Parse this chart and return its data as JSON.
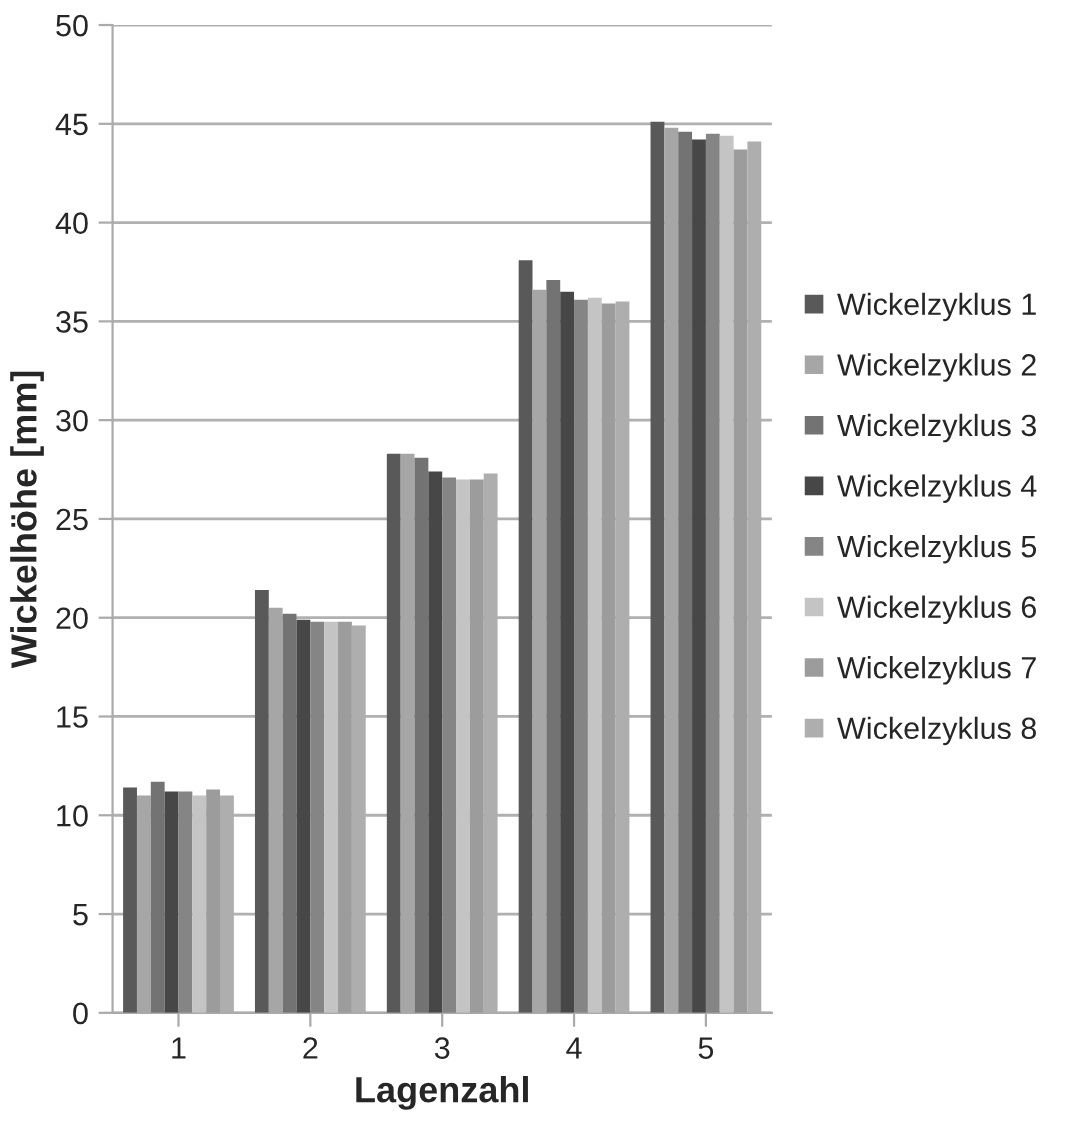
{
  "chart_data": {
    "type": "bar",
    "xlabel": "Lagenzahl",
    "ylabel": "Wickelhöhe [mm]",
    "categories": [
      "1",
      "2",
      "3",
      "4",
      "5"
    ],
    "series": [
      {
        "name": "Wickelzyklus 1",
        "color": "#595959",
        "values": [
          11.4,
          21.4,
          28.3,
          38.1,
          45.1
        ]
      },
      {
        "name": "Wickelzyklus 2",
        "color": "#a6a6a6",
        "values": [
          11.0,
          20.5,
          28.3,
          36.6,
          44.8
        ]
      },
      {
        "name": "Wickelzyklus 3",
        "color": "#737373",
        "values": [
          11.7,
          20.2,
          28.1,
          37.1,
          44.6
        ]
      },
      {
        "name": "Wickelzyklus 4",
        "color": "#474747",
        "values": [
          11.2,
          19.9,
          27.4,
          36.5,
          44.2
        ]
      },
      {
        "name": "Wickelzyklus 5",
        "color": "#858585",
        "values": [
          11.2,
          19.8,
          27.1,
          36.1,
          44.5
        ]
      },
      {
        "name": "Wickelzyklus 6",
        "color": "#c4c4c4",
        "values": [
          11.0,
          19.8,
          27.0,
          36.2,
          44.4
        ]
      },
      {
        "name": "Wickelzyklus 7",
        "color": "#9c9c9c",
        "values": [
          11.3,
          19.8,
          27.0,
          35.9,
          43.7
        ]
      },
      {
        "name": "Wickelzyklus 8",
        "color": "#aeaeae",
        "values": [
          11.0,
          19.6,
          27.3,
          36.0,
          44.1
        ]
      }
    ],
    "ylim": [
      0,
      50
    ],
    "yticks": [
      0,
      5,
      10,
      15,
      20,
      25,
      30,
      35,
      40,
      45,
      50
    ],
    "grid": "y",
    "legend": "right"
  }
}
